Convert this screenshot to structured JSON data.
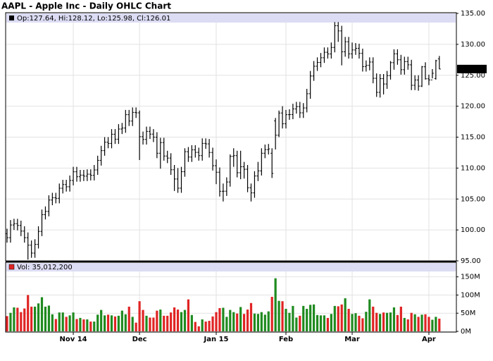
{
  "chart_data": {
    "type": "ohlc",
    "title": "AAPL - Apple Inc - Daily OHLC Chart",
    "legend": "Op:127.64, Hi:128.12, Lo:125.98, Cl:126.01",
    "volume_legend": "Vol: 35,012,200",
    "categories": [
      null,
      null,
      null,
      null,
      null,
      null,
      null,
      null,
      null,
      null,
      null,
      null,
      null,
      null,
      null,
      null,
      null,
      null,
      null,
      "Nov 14",
      null,
      null,
      null,
      null,
      null,
      null,
      null,
      null,
      null,
      null,
      null,
      null,
      null,
      null,
      null,
      null,
      null,
      null,
      "Dec",
      null,
      null,
      null,
      null,
      null,
      null,
      null,
      null,
      null,
      null,
      null,
      null,
      null,
      null,
      null,
      null,
      null,
      null,
      null,
      null,
      null,
      "Jan 15",
      null,
      null,
      null,
      null,
      null,
      null,
      null,
      null,
      null,
      null,
      null,
      null,
      null,
      null,
      null,
      null,
      null,
      null,
      null,
      "Feb",
      null,
      null,
      null,
      null,
      null,
      null,
      null,
      null,
      null,
      null,
      null,
      null,
      null,
      null,
      null,
      null,
      null,
      null,
      "Mar",
      null,
      null,
      null,
      null,
      null,
      null,
      null,
      null,
      null,
      null,
      null,
      null,
      null,
      null,
      null,
      null,
      null,
      null,
      null,
      null,
      null,
      "Apr",
      null,
      null,
      null
    ],
    "open": [
      99.4,
      98.75,
      100.8,
      101.02,
      100.73,
      99.81,
      98.75,
      97.54,
      96.26,
      97.67,
      99.76,
      102.47,
      102.99,
      104.83,
      105.22,
      105.11,
      106.74,
      107.34,
      106.98,
      108.0,
      109.4,
      108.6,
      108.86,
      108.7,
      109.01,
      108.83,
      109.7,
      111.25,
      112.82,
      114.18,
      113.99,
      115.47,
      114.67,
      116.31,
      116.47,
      118.63,
      117.6,
      119.0,
      118.93,
      115.07,
      114.63,
      115.93,
      115.49,
      115.0,
      112.4,
      114.12,
      111.95,
      111.62,
      109.73,
      108.23,
      106.75,
      109.41,
      112.65,
      111.78,
      112.94,
      112.54,
      112.01,
      113.99,
      113.91,
      112.52,
      110.38,
      109.33,
      106.25,
      106.26,
      107.75,
      111.89,
      112.01,
      109.25,
      110.22,
      109.8,
      106.82,
      105.99,
      108.72,
      109.55,
      112.4,
      112.98,
      112.4,
      117.63,
      115.31,
      118.9,
      117.16,
      118.63,
      118.65,
      119.56,
      119.94,
      118.93,
      119.72,
      122.02,
      124.88,
      126.46,
      127.08,
      127.83,
      128.72,
      128.45,
      129.5,
      133.0,
      132.17,
      128.79,
      130.42,
      128.46,
      129.09,
      129.36,
      128.54,
      126.41,
      126.6,
      127.14,
      124.51,
      122.24,
      124.45,
      123.59,
      124.95,
      127.04,
      128.47,
      127.5,
      125.9,
      127.21,
      126.69,
      123.38,
      124.24,
      123.25,
      126.37,
      124.43,
      124.25,
      124.47,
      127.64
    ],
    "high": [
      100.2,
      101.6,
      101.8,
      101.8,
      101.5,
      100.6,
      99.6,
      98.3,
      98.5,
      100.6,
      103.3,
      103.8,
      105.6,
      106.0,
      106.0,
      107.5,
      108.1,
      108.1,
      108.8,
      110.2,
      110.2,
      109.7,
      109.7,
      109.8,
      109.8,
      110.5,
      112.0,
      113.6,
      115.0,
      115.0,
      116.3,
      116.3,
      117.1,
      117.3,
      119.4,
      119.4,
      119.8,
      119.8,
      119.3,
      115.9,
      116.7,
      116.7,
      116.3,
      115.8,
      114.9,
      114.9,
      112.8,
      112.4,
      110.5,
      110.0,
      110.2,
      113.2,
      113.4,
      113.7,
      113.7,
      113.3,
      114.8,
      114.8,
      114.7,
      113.3,
      111.4,
      110.1,
      107.5,
      108.5,
      112.2,
      113.2,
      112.8,
      112.8,
      111.0,
      110.5,
      107.5,
      109.5,
      111.0,
      113.2,
      113.8,
      113.9,
      113.2,
      118.1,
      119.3,
      120.0,
      119.4,
      119.5,
      120.4,
      120.7,
      120.7,
      120.5,
      122.8,
      125.7,
      127.3,
      127.9,
      128.6,
      129.5,
      129.5,
      130.3,
      133.6,
      133.6,
      133.0,
      131.2,
      131.2,
      130.3,
      130.2,
      130.1,
      129.3,
      127.4,
      127.9,
      127.9,
      125.3,
      125.2,
      125.2,
      125.7,
      127.3,
      129.2,
      129.2,
      128.3,
      128.0,
      128.0,
      127.5,
      125.0,
      125.0,
      126.5,
      127.1,
      125.1,
      126.0,
      127.5,
      128.12
    ],
    "low": [
      97.95,
      97.95,
      100.0,
      99.93,
      99.0,
      97.95,
      95.2,
      95.5,
      95.5,
      97.0,
      99.0,
      101.7,
      102.2,
      104.0,
      104.3,
      104.3,
      105.9,
      106.2,
      106.2,
      107.2,
      107.8,
      107.8,
      107.9,
      107.9,
      108.0,
      108.0,
      108.9,
      110.4,
      112.0,
      113.2,
      113.2,
      113.9,
      113.9,
      115.5,
      115.7,
      116.8,
      116.8,
      118.1,
      111.3,
      113.8,
      113.8,
      114.7,
      114.2,
      111.6,
      109.9,
      111.2,
      110.8,
      108.9,
      106.3,
      106.0,
      106.0,
      108.6,
      111.0,
      111.0,
      111.7,
      111.2,
      111.2,
      113.1,
      111.7,
      109.6,
      107.4,
      105.4,
      104.6,
      105.5,
      107.0,
      110.2,
      108.5,
      108.2,
      108.3,
      106.1,
      104.6,
      105.2,
      107.9,
      108.8,
      111.6,
      112.2,
      108.4,
      113.0,
      115.0,
      116.4,
      116.4,
      117.8,
      117.9,
      118.8,
      118.1,
      118.1,
      119.0,
      121.2,
      124.1,
      125.7,
      126.3,
      127.0,
      127.7,
      127.7,
      128.7,
      130.4,
      126.6,
      128.0,
      127.7,
      127.7,
      128.3,
      127.7,
      125.6,
      125.6,
      125.8,
      123.7,
      121.5,
      121.4,
      121.9,
      122.8,
      124.3,
      125.9,
      126.7,
      125.1,
      125.1,
      125.9,
      122.6,
      122.6,
      122.5,
      123.1,
      124.3,
      123.4,
      124.5,
      124.3,
      125.98
    ],
    "close": [
      98.75,
      100.8,
      101.02,
      100.73,
      99.81,
      98.75,
      97.54,
      96.26,
      97.67,
      99.76,
      102.47,
      102.99,
      104.83,
      105.22,
      105.11,
      106.74,
      107.34,
      106.98,
      108.0,
      109.4,
      108.6,
      108.86,
      108.7,
      109.01,
      108.83,
      109.7,
      111.25,
      112.82,
      114.18,
      113.99,
      115.47,
      114.67,
      116.31,
      116.47,
      118.63,
      117.6,
      119.0,
      118.93,
      115.07,
      114.63,
      115.93,
      115.49,
      115.0,
      112.4,
      114.12,
      111.95,
      111.62,
      109.73,
      108.23,
      106.75,
      109.41,
      112.65,
      111.78,
      112.94,
      112.54,
      112.01,
      113.99,
      113.91,
      112.52,
      110.38,
      109.33,
      106.25,
      106.26,
      107.75,
      111.89,
      112.01,
      109.25,
      110.22,
      109.8,
      106.82,
      105.99,
      108.72,
      109.55,
      112.4,
      112.98,
      113.1,
      109.14,
      115.31,
      118.9,
      117.16,
      118.63,
      118.65,
      119.56,
      119.94,
      118.93,
      119.72,
      122.02,
      124.88,
      126.46,
      127.08,
      127.83,
      128.72,
      128.45,
      129.5,
      133.0,
      132.17,
      128.79,
      130.42,
      128.46,
      129.09,
      129.36,
      128.54,
      126.41,
      126.6,
      127.14,
      124.51,
      122.24,
      124.45,
      123.59,
      124.95,
      127.04,
      128.47,
      127.5,
      125.9,
      127.21,
      126.69,
      123.38,
      124.24,
      123.25,
      126.37,
      124.43,
      124.25,
      125.32,
      127.35,
      126.01
    ],
    "volume": [
      42000000,
      51000000,
      66000000,
      65000000,
      53000000,
      63000000,
      100000000,
      68000000,
      68000000,
      77000000,
      94000000,
      68000000,
      71000000,
      47000000,
      34000000,
      52000000,
      52000000,
      40000000,
      44000000,
      52000000,
      34000000,
      37000000,
      33000000,
      33000000,
      27000000,
      27000000,
      46000000,
      59000000,
      44000000,
      46000000,
      44000000,
      41000000,
      43000000,
      57000000,
      47000000,
      68000000,
      40000000,
      24000000,
      83000000,
      59000000,
      43000000,
      38000000,
      38000000,
      57000000,
      60000000,
      43000000,
      43000000,
      52000000,
      66000000,
      60000000,
      53000000,
      59000000,
      88000000,
      45000000,
      26000000,
      14000000,
      33000000,
      27000000,
      29000000,
      41000000,
      53000000,
      64000000,
      65000000,
      40000000,
      59000000,
      53000000,
      49000000,
      67000000,
      48000000,
      60000000,
      78000000,
      49000000,
      48000000,
      53000000,
      46000000,
      55000000,
      95000000,
      146000000,
      84000000,
      83000000,
      62000000,
      51000000,
      70000000,
      38000000,
      43000000,
      70000000,
      62000000,
      73000000,
      74000000,
      45000000,
      44000000,
      44000000,
      37000000,
      48000000,
      70000000,
      69000000,
      74000000,
      91000000,
      62000000,
      48000000,
      50000000,
      43000000,
      36000000,
      54000000,
      88000000,
      68000000,
      51000000,
      48000000,
      52000000,
      51000000,
      52000000,
      66000000,
      45000000,
      68000000,
      37000000,
      33000000,
      51000000,
      47000000,
      40000000,
      46000000,
      47000000,
      40000000,
      32000000,
      40000000,
      35012200
    ],
    "ylim": [
      95,
      135
    ],
    "yticks": [
      {
        "value": 95,
        "label": "95.00"
      },
      {
        "value": 100,
        "label": "100.00"
      },
      {
        "value": 105,
        "label": "105.00"
      },
      {
        "value": 110,
        "label": "110.00"
      },
      {
        "value": 115,
        "label": "115.00"
      },
      {
        "value": 120,
        "label": "120.00"
      },
      {
        "value": 125,
        "label": "125.00"
      },
      {
        "value": 130,
        "label": "130.00"
      },
      {
        "value": 135,
        "label": "135.00"
      }
    ],
    "volume_ylim": [
      0,
      190000000
    ],
    "volume_yticks": [
      {
        "value": 0,
        "label": "0M"
      },
      {
        "value": 50000000,
        "label": "50M"
      },
      {
        "value": 100000000,
        "label": "100M"
      },
      {
        "value": 150000000,
        "label": "150M"
      }
    ],
    "bar_color": "#000000",
    "up_color": "#1f8a1f",
    "down_color": "#e02424",
    "grid": true
  }
}
